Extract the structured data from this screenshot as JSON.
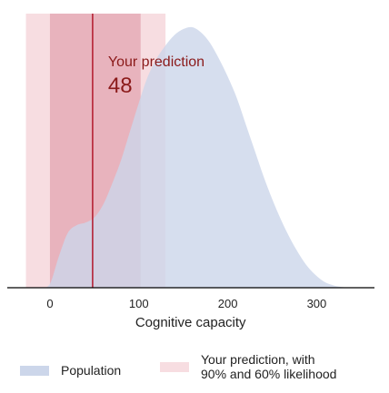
{
  "chart_data": {
    "type": "area",
    "xlabel": "Cognitive capacity",
    "xlim": [
      -48,
      365
    ],
    "x_ticks": [
      0,
      100,
      200,
      300
    ],
    "grid": false,
    "population_density": {
      "x": [
        -10,
        0,
        10,
        20,
        30,
        40,
        50,
        60,
        70,
        80,
        90,
        100,
        110,
        120,
        130,
        140,
        150,
        160,
        170,
        180,
        190,
        200,
        210,
        220,
        230,
        240,
        250,
        260,
        270,
        280,
        290,
        300,
        310,
        320,
        330,
        340
      ],
      "y": [
        0,
        0.015,
        0.12,
        0.21,
        0.24,
        0.25,
        0.27,
        0.32,
        0.4,
        0.49,
        0.6,
        0.71,
        0.81,
        0.88,
        0.93,
        0.97,
        0.993,
        1.0,
        0.98,
        0.94,
        0.88,
        0.81,
        0.73,
        0.63,
        0.53,
        0.43,
        0.34,
        0.26,
        0.19,
        0.13,
        0.08,
        0.045,
        0.02,
        0.008,
        0.002,
        0
      ]
    },
    "prediction": {
      "label": "Your prediction",
      "value": 48,
      "interval_90": [
        -27,
        130
      ],
      "interval_60": [
        0,
        102
      ]
    },
    "colors": {
      "population": "#ccd6ea",
      "interval_90": "#f7dde1",
      "interval_60": "#e8b3bd",
      "prediction_line": "#b2182b",
      "prediction_text": "#8b1a1a"
    },
    "legend": {
      "placement": "bottom",
      "items": [
        {
          "label_lines": [
            "Population"
          ]
        },
        {
          "label_lines": [
            "Your prediction, with",
            "90% and 60% likelihood"
          ]
        }
      ]
    }
  }
}
